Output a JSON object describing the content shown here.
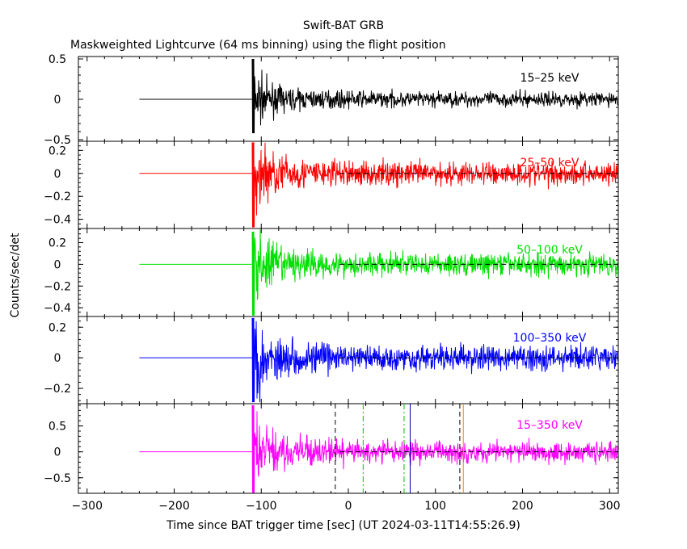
{
  "chart_data": {
    "type": "line",
    "title": "Swift-BAT GRB",
    "subtitle": "Maskweighted Lightcurve (64 ms binning) using the flight position",
    "xlabel": "Time since BAT trigger time [sec] (UT 2024-03-11T14:55:26.9)",
    "ylabel": "Counts/sec/det",
    "xlim": [
      -310,
      310
    ],
    "x_ticks": [
      -300,
      -200,
      -100,
      0,
      100,
      200,
      300
    ],
    "x_tick_labels": [
      "−300",
      "−200",
      "−100",
      "0",
      "100",
      "200",
      "300"
    ],
    "data_start": -240,
    "burst_time": -110,
    "panels": [
      {
        "name": "15–25 keV",
        "color": "#000000",
        "ylim": [
          -0.52,
          0.53
        ],
        "y_ticks": [
          -0.5,
          0,
          0.5
        ],
        "y_tick_labels": [
          "−0.5",
          "0",
          "0.5"
        ],
        "zero_line": false,
        "noise_amplitude": 0.045,
        "spike_peak": 0.5,
        "spike_dip": -0.42
      },
      {
        "name": "25–50 keV",
        "color": "#ff0000",
        "ylim": [
          -0.48,
          0.28
        ],
        "y_ticks": [
          -0.4,
          -0.2,
          0,
          0.2
        ],
        "y_tick_labels": [
          "−0.4",
          "−0.2",
          "0",
          "0.2"
        ],
        "zero_line": true,
        "noise_amplitude": 0.05,
        "spike_peak": 0.28,
        "spike_dip": -0.47
      },
      {
        "name": "50–100 keV",
        "color": "#00e000",
        "ylim": [
          -0.48,
          0.33
        ],
        "y_ticks": [
          -0.4,
          -0.2,
          0,
          0.2
        ],
        "y_tick_labels": [
          "−0.4",
          "−0.2",
          "0",
          "0.2"
        ],
        "zero_line": true,
        "noise_amplitude": 0.05,
        "spike_peak": 0.3,
        "spike_dip": -0.47
      },
      {
        "name": "100–350 keV",
        "color": "#0000ff",
        "ylim": [
          -0.3,
          0.27
        ],
        "y_ticks": [
          -0.2,
          0,
          0.2
        ],
        "y_tick_labels": [
          "−0.2",
          "0",
          "0.2"
        ],
        "zero_line": true,
        "noise_amplitude": 0.04,
        "spike_peak": 0.26,
        "spike_dip": -0.29
      },
      {
        "name": "15–350 keV",
        "color": "#ff00ff",
        "ylim": [
          -0.8,
          0.93
        ],
        "y_ticks": [
          -0.5,
          0,
          0.5
        ],
        "y_tick_labels": [
          "−0.5",
          "0",
          "0.5"
        ],
        "zero_line": true,
        "noise_amplitude": 0.1,
        "spike_peak": 0.9,
        "spike_dip": -0.79
      }
    ],
    "markers": [
      {
        "x": -15,
        "color": "#000000",
        "style": "dashed"
      },
      {
        "x": 17,
        "color": "#00c000",
        "style": "dashdot"
      },
      {
        "x": 64,
        "color": "#00c000",
        "style": "dashdot"
      },
      {
        "x": 71,
        "color": "#0000aa",
        "style": "solid"
      },
      {
        "x": 128,
        "color": "#000000",
        "style": "dashed"
      },
      {
        "x": 132,
        "color": "#ff8000",
        "style": "solid"
      }
    ]
  }
}
